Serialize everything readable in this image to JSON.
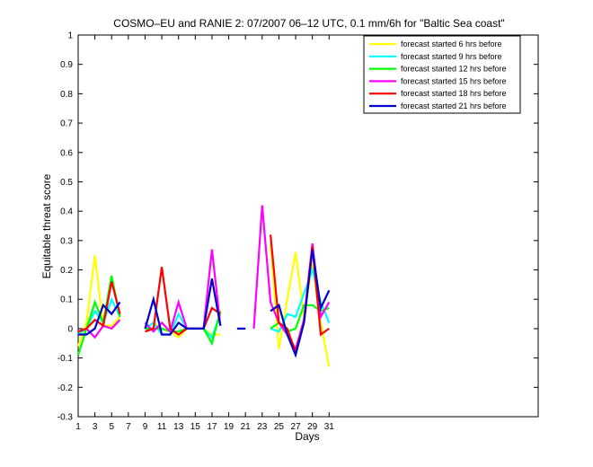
{
  "chart_data": {
    "type": "line",
    "title": "COSMO–EU and RANIE 2: 07/2007 06–12 UTC, 0.1 mm/6h for \"Baltic Sea coast\"",
    "xlabel": "Days",
    "ylabel": "Equitable threat score",
    "xlim": [
      1,
      56
    ],
    "ylim": [
      -0.3,
      1
    ],
    "xticks": [
      1,
      3,
      5,
      7,
      9,
      11,
      13,
      15,
      17,
      19,
      21,
      23,
      25,
      27,
      29,
      31
    ],
    "yticks": [
      -0.3,
      -0.2,
      -0.1,
      0,
      0.1,
      0.2,
      0.3,
      0.4,
      0.5,
      0.6,
      0.7,
      0.8,
      0.9,
      1
    ],
    "ytick_labels": [
      "-0.3",
      "-0.2",
      "-0.1",
      "0",
      "0.1",
      "0.2",
      "0.3",
      "0.4",
      "0.5",
      "0.6",
      "0.7",
      "0.8",
      "0.9",
      "1"
    ],
    "legend_position": "top-right",
    "grid": false,
    "x": [
      1,
      2,
      3,
      4,
      5,
      6,
      7,
      8,
      9,
      10,
      11,
      12,
      13,
      14,
      15,
      16,
      17,
      18,
      19,
      20,
      21,
      22,
      23,
      24,
      25,
      26,
      27,
      28,
      29,
      30,
      31
    ],
    "series": [
      {
        "name": "forecast started 6 hrs before",
        "color": "#ffff00",
        "values": [
          -0.06,
          0.02,
          0.25,
          0.01,
          0.01,
          0.04,
          null,
          null,
          0.0,
          0.02,
          0.0,
          -0.01,
          -0.03,
          0.0,
          0.0,
          0.0,
          -0.02,
          -0.02,
          null,
          null,
          null,
          null,
          null,
          0.29,
          -0.07,
          0.1,
          0.26,
          0.04,
          0.22,
          0.02,
          -0.13
        ]
      },
      {
        "name": "forecast started 9 hrs before",
        "color": "#00ffff",
        "values": [
          -0.02,
          0.0,
          0.06,
          0.02,
          0.1,
          0.04,
          null,
          null,
          0.0,
          0.02,
          -0.02,
          -0.02,
          0.05,
          0.0,
          0.0,
          0.0,
          -0.03,
          0.05,
          null,
          null,
          null,
          null,
          null,
          0.0,
          -0.01,
          0.05,
          0.04,
          0.12,
          0.2,
          0.09,
          0.02
        ]
      },
      {
        "name": "forecast started 12 hrs before",
        "color": "#00ff00",
        "values": [
          -0.09,
          0.0,
          0.09,
          0.02,
          0.18,
          0.04,
          null,
          null,
          0.0,
          0.0,
          0.0,
          -0.01,
          -0.01,
          0.0,
          0.0,
          0.0,
          -0.05,
          0.06,
          null,
          null,
          null,
          null,
          null,
          0.0,
          0.02,
          -0.01,
          0.0,
          0.08,
          0.08,
          0.06,
          0.07
        ]
      },
      {
        "name": "forecast started 15 hrs before",
        "color": "#ff00ff",
        "values": [
          -0.01,
          0.0,
          -0.03,
          0.01,
          0.0,
          0.03,
          null,
          null,
          0.02,
          -0.01,
          0.02,
          -0.01,
          0.09,
          0.0,
          0.0,
          0.0,
          0.27,
          0.01,
          null,
          null,
          null,
          0.0,
          0.42,
          0.09,
          0.02,
          -0.02,
          -0.07,
          0.03,
          0.29,
          0.04,
          0.09
        ]
      },
      {
        "name": "forecast started 18 hrs before",
        "color": "#ff0000",
        "values": [
          -0.01,
          0.0,
          0.03,
          0.01,
          0.16,
          0.05,
          null,
          null,
          -0.01,
          0.0,
          0.21,
          0.0,
          -0.02,
          0.0,
          0.0,
          0.0,
          0.07,
          0.05,
          null,
          null,
          null,
          null,
          null,
          0.32,
          0.02,
          0.0,
          -0.08,
          0.02,
          0.28,
          -0.02,
          0.0
        ]
      },
      {
        "name": "forecast started 21 hrs before",
        "color": "#0000cc",
        "values": [
          -0.02,
          -0.02,
          0.0,
          0.08,
          0.05,
          0.09,
          null,
          null,
          0.0,
          0.1,
          -0.02,
          -0.02,
          0.02,
          0.0,
          0.0,
          0.0,
          0.17,
          0.01,
          null,
          0.0,
          0.0,
          null,
          null,
          0.06,
          0.08,
          -0.02,
          -0.09,
          0.02,
          0.27,
          0.07,
          0.13
        ]
      }
    ]
  }
}
